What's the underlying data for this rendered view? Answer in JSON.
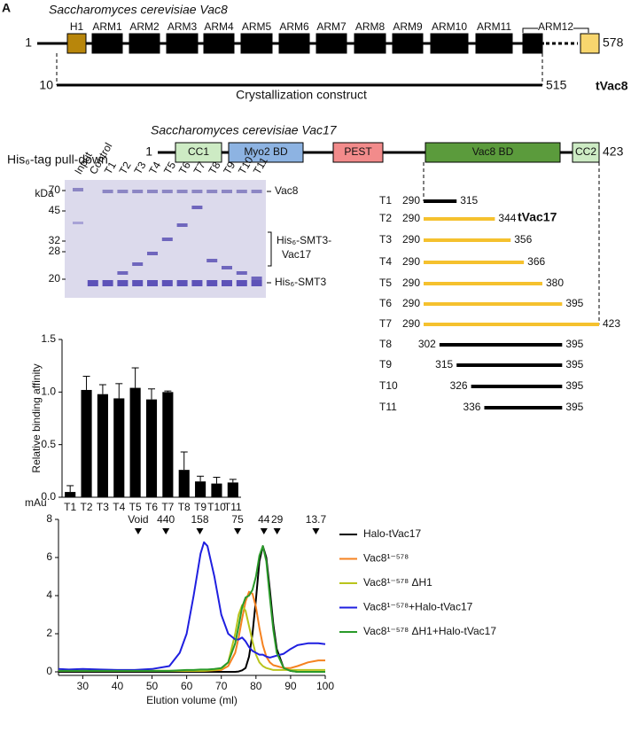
{
  "figure_label": "A",
  "panel_a": {
    "title": "Saccharomyces cerevisiae Vac8",
    "start": 1,
    "end": 578,
    "domains": [
      "H1",
      "ARM1",
      "ARM2",
      "ARM3",
      "ARM4",
      "ARM5",
      "ARM6",
      "ARM7",
      "ARM8",
      "ARM9",
      "ARM10",
      "ARM11",
      "ARM12"
    ],
    "construct": {
      "start": 10,
      "end": 515,
      "label": "Crystallization construct",
      "name": "tVac8"
    }
  },
  "panel_b": {
    "title": "Saccharomyces cerevisiae Vac17",
    "start": 1,
    "end": 423,
    "domains": [
      {
        "label": "CC1",
        "color": "#cdebc4"
      },
      {
        "label": "Myo2 BD",
        "color": "#8db3e2"
      },
      {
        "label": "PEST",
        "color": "#f28b8b"
      },
      {
        "label": "Vac8 BD",
        "color": "#5b9b3c"
      },
      {
        "label": "CC2",
        "color": "#cdebc4"
      }
    ],
    "construct_name": "tVac17",
    "truncations": [
      {
        "name": "T1",
        "start": 290,
        "end": 315,
        "color": "#000000"
      },
      {
        "name": "T2",
        "start": 290,
        "end": 344,
        "color": "#f5c12e"
      },
      {
        "name": "T3",
        "start": 290,
        "end": 356,
        "color": "#f5c12e"
      },
      {
        "name": "T4",
        "start": 290,
        "end": 366,
        "color": "#f5c12e"
      },
      {
        "name": "T5",
        "start": 290,
        "end": 380,
        "color": "#f5c12e"
      },
      {
        "name": "T6",
        "start": 290,
        "end": 395,
        "color": "#f5c12e"
      },
      {
        "name": "T7",
        "start": 290,
        "end": 423,
        "color": "#f5c12e"
      },
      {
        "name": "T8",
        "start": 302,
        "end": 395,
        "color": "#000000"
      },
      {
        "name": "T9",
        "start": 315,
        "end": 395,
        "color": "#000000"
      },
      {
        "name": "T10",
        "start": 326,
        "end": 395,
        "color": "#000000"
      },
      {
        "name": "T11",
        "start": 336,
        "end": 395,
        "color": "#000000"
      }
    ]
  },
  "gel": {
    "title": "His₆-tag pull-down",
    "unit": "kDa",
    "lanes": [
      "Input",
      "Control",
      "T1",
      "T2",
      "T3",
      "T4",
      "T5",
      "T6",
      "T7",
      "T8",
      "T9",
      "T10",
      "T11"
    ],
    "markers": [
      70,
      45,
      32,
      28,
      20
    ],
    "band_vac8": "Vac8",
    "band_fusion": [
      "His₆-SMT3-",
      "Vac17"
    ],
    "band_smt3": "His₆-SMT3"
  },
  "chart_data": [
    {
      "type": "bar",
      "y_label": "Relative binding affinity",
      "categories": [
        "T1",
        "T2",
        "T3",
        "T4",
        "T5",
        "T6",
        "T7",
        "T8",
        "T9",
        "T10",
        "T11"
      ],
      "values": [
        0.05,
        1.02,
        0.98,
        0.94,
        1.04,
        0.93,
        1.0,
        0.26,
        0.15,
        0.13,
        0.14
      ],
      "errors": [
        0.06,
        0.13,
        0.09,
        0.14,
        0.19,
        0.1,
        0.01,
        0.17,
        0.05,
        0.06,
        0.03
      ],
      "color": "#000000",
      "ylim": [
        0,
        1.5
      ],
      "yticks": [
        {
          "value": 0,
          "label": "0.0"
        },
        0.5,
        {
          "value": 1,
          "label": "1.0"
        },
        1.5
      ]
    },
    {
      "type": "line",
      "x_label": "Elution volume (ml)",
      "y_label": "mAu",
      "x": [
        23,
        26,
        30,
        35,
        40,
        45,
        50,
        55,
        58,
        60,
        62,
        64,
        65,
        66,
        68,
        70,
        72,
        74,
        75,
        76,
        77,
        78,
        79,
        80,
        81,
        82,
        83,
        84,
        85,
        86,
        88,
        90,
        92,
        95,
        98,
        100
      ],
      "series": [
        {
          "name": "Halo-tVac17",
          "color": "#000000",
          "values": [
            0,
            0,
            0,
            0,
            0,
            0,
            0,
            0,
            0,
            0,
            0,
            0,
            0,
            0,
            0,
            0,
            0,
            0,
            0.02,
            0.08,
            0.2,
            0.8,
            2.0,
            3.8,
            5.8,
            6.6,
            6.0,
            4.3,
            2.5,
            1.2,
            0.2,
            0.05,
            0,
            0,
            0,
            0
          ]
        },
        {
          "name": "Vac8¹⁻⁵⁷⁸",
          "color": "#f58220",
          "values": [
            0.05,
            0.05,
            0.05,
            0.05,
            0.05,
            0.05,
            0.05,
            0.05,
            0.05,
            0.05,
            0.05,
            0.05,
            0.05,
            0.06,
            0.08,
            0.1,
            0.3,
            1.0,
            1.8,
            2.8,
            3.7,
            4.2,
            4.1,
            3.4,
            2.3,
            1.4,
            0.8,
            0.5,
            0.35,
            0.3,
            0.2,
            0.2,
            0.3,
            0.5,
            0.6,
            0.6
          ]
        },
        {
          "name": "Vac8¹⁻⁵⁷⁸ ΔH1",
          "color": "#b9c41c",
          "values": [
            0.05,
            0.05,
            0.05,
            0.05,
            0.05,
            0.05,
            0.05,
            0.05,
            0.05,
            0.05,
            0.05,
            0.05,
            0.06,
            0.07,
            0.1,
            0.15,
            0.5,
            2.0,
            3.0,
            3.5,
            3.2,
            2.4,
            1.6,
            0.9,
            0.5,
            0.3,
            0.2,
            0.15,
            0.1,
            0.1,
            0.1,
            0.1,
            0.1,
            0.1,
            0.1,
            0.1
          ]
        },
        {
          "name": "Vac8¹⁻⁵⁷⁸+Halo-tVac17",
          "color": "#1f1fe0",
          "values": [
            0.15,
            0.12,
            0.15,
            0.12,
            0.1,
            0.1,
            0.15,
            0.3,
            1.0,
            2.0,
            4.0,
            6.2,
            6.8,
            6.6,
            5.0,
            3.0,
            2.0,
            1.7,
            1.7,
            1.8,
            1.6,
            1.3,
            1.1,
            1.0,
            0.9,
            0.9,
            0.8,
            0.75,
            0.8,
            0.85,
            0.95,
            1.2,
            1.4,
            1.5,
            1.5,
            1.45
          ]
        },
        {
          "name": "Vac8¹⁻⁵⁷⁸ ΔH1+Halo-tVac17",
          "color": "#2a9a2a",
          "values": [
            0.05,
            0.05,
            0.05,
            0.05,
            0.05,
            0.05,
            0.05,
            0.05,
            0.08,
            0.1,
            0.1,
            0.12,
            0.12,
            0.12,
            0.15,
            0.2,
            0.5,
            1.5,
            2.4,
            3.4,
            3.9,
            4.0,
            4.3,
            5.0,
            6.1,
            6.6,
            5.8,
            3.9,
            2.2,
            1.0,
            0.2,
            0.05,
            0,
            0,
            0,
            0
          ]
        }
      ],
      "xlim": [
        23,
        100
      ],
      "ylim": [
        0,
        8
      ],
      "xticks": [
        30,
        40,
        50,
        60,
        70,
        80,
        90,
        100
      ],
      "yticks": [
        0,
        2,
        4,
        6,
        8
      ],
      "annotations": [
        {
          "label": "Void",
          "x": 46
        },
        {
          "label": "440",
          "x": 54
        },
        {
          "label": "158",
          "x": 63.8
        },
        {
          "label": "75",
          "x": 74.7
        },
        {
          "label": "44",
          "x": 82.3
        },
        {
          "label": "29",
          "x": 86.1
        },
        {
          "label": "13.7",
          "x": 97.3
        }
      ],
      "legend": "right"
    }
  ]
}
